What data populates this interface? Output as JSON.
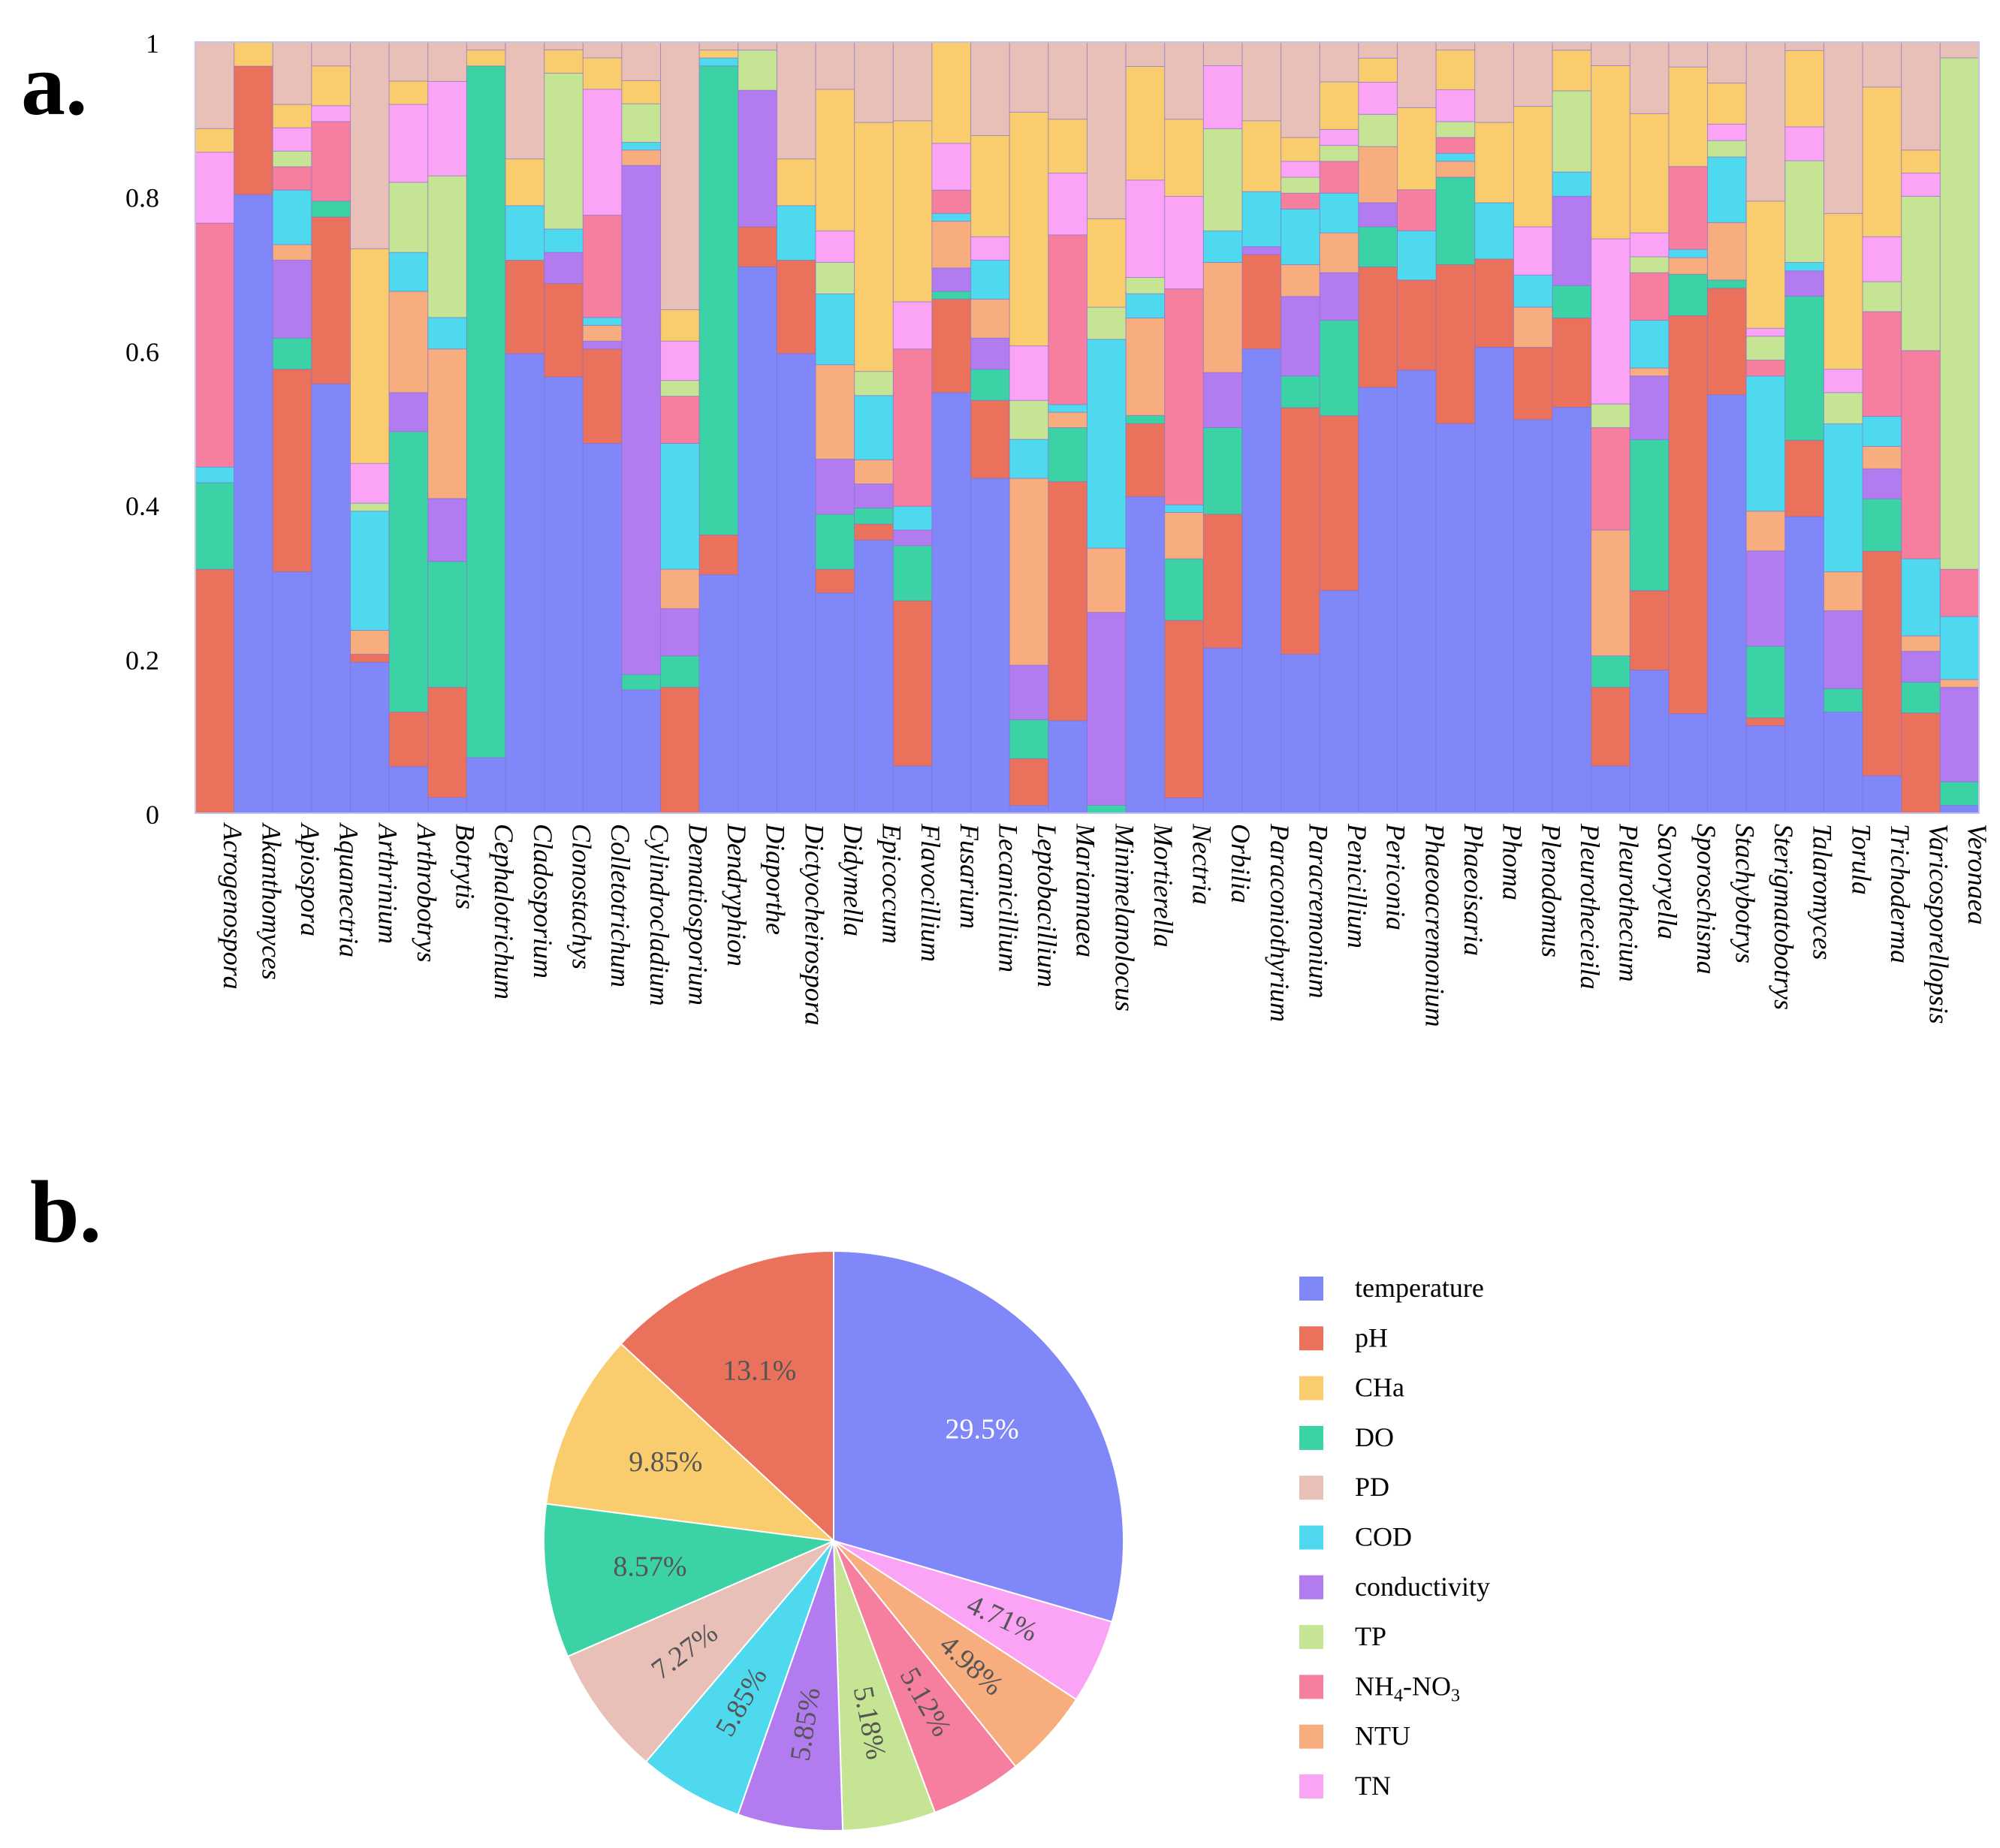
{
  "panel_labels": {
    "a": "a.",
    "b": "b."
  },
  "colors": {
    "temperature": "#8087f8",
    "pH": "#ea715c",
    "CHa": "#f9cc6e",
    "DO": "#3bd3a6",
    "PD": "#e8c0b8",
    "COD": "#4fd9ee",
    "conductivity": "#b27cf0",
    "TP": "#c6e594",
    "NH4-NO3": "#f67f9f",
    "NTU": "#f7ad7d",
    "TN": "#fba4f5",
    "axis": "#c8c3e8"
  },
  "chart_data": [
    {
      "type": "bar",
      "stacked": true,
      "panel": "a",
      "title": "",
      "xlabel": "",
      "ylabel": "",
      "ylim": [
        0,
        1
      ],
      "yticks": [
        "0",
        "0.2",
        "0.4",
        "0.6",
        "0.8",
        "1"
      ],
      "stack_order": [
        "temperature",
        "pH",
        "DO",
        "conductivity",
        "NTU",
        "COD",
        "NH4-NO3",
        "TP",
        "TN",
        "CHa",
        "PD"
      ],
      "categories": [
        "Acrogenospora",
        "Akanthomyces",
        "Apiospora",
        "Aquanectria",
        "Arthrinium",
        "Arthrobotrys",
        "Botrytis",
        "Cephalotrichum",
        "Cladosporium",
        "Clonostachys",
        "Colletotrichum",
        "Cylindrocladium",
        "Dematiosporium",
        "Dendryphion",
        "Diaporthe",
        "Dictyocheirospora",
        "Didymella",
        "Epicoccum",
        "Flavocillium",
        "Fusarium",
        "Lecanicillium",
        "Leptobacillium",
        "Mariannaea",
        "Minimelanolocus",
        "Mortierella",
        "Nectria",
        "Orbilia",
        "Paraconiothyrium",
        "Paracremonium",
        "Penicillium",
        "Periconia",
        "Phaeoacremonium",
        "Phaeoisaria",
        "Phoma",
        "Plenodomus",
        "Pleurothecieila",
        "Pleurothecium",
        "Savoryella",
        "Sporoschisma",
        "Stachybotrys",
        "Sterigmatobotrys",
        "Talaromyces",
        "Torula",
        "Trichoderma",
        "Varicosporellopsis",
        "Veronaea"
      ],
      "series": [
        {
          "name": "temperature",
          "values": [
            0.0,
            0.77,
            0.31,
            0.54,
            0.19,
            0.06,
            0.02,
            0.07,
            0.59,
            0.56,
            0.47,
            0.16,
            0.0,
            0.3,
            0.68,
            0.59,
            0.28,
            0.34,
            0.06,
            0.54,
            0.43,
            0.01,
            0.12,
            0.0,
            0.39,
            0.02,
            0.21,
            0.59,
            0.2,
            0.28,
            0.53,
            0.54,
            0.49,
            0.58,
            0.49,
            0.5,
            0.06,
            0.18,
            0.12,
            0.51,
            0.11,
            0.35,
            0.13,
            0.05,
            0.0,
            0.01
          ]
        },
        {
          "name": "pH",
          "values": [
            0.31,
            0.16,
            0.26,
            0.21,
            0.01,
            0.07,
            0.14,
            0.0,
            0.12,
            0.12,
            0.12,
            0.0,
            0.16,
            0.05,
            0.05,
            0.12,
            0.03,
            0.02,
            0.21,
            0.12,
            0.1,
            0.06,
            0.31,
            0.0,
            0.09,
            0.23,
            0.17,
            0.12,
            0.31,
            0.22,
            0.15,
            0.11,
            0.2,
            0.11,
            0.09,
            0.11,
            0.1,
            0.1,
            0.48,
            0.13,
            0.01,
            0.09,
            0.0,
            0.3,
            0.13,
            0.0
          ]
        },
        {
          "name": "DO",
          "values": [
            0.11,
            0.0,
            0.04,
            0.02,
            0.0,
            0.36,
            0.16,
            0.87,
            0.0,
            0.0,
            0.0,
            0.02,
            0.04,
            0.59,
            0.0,
            0.0,
            0.07,
            0.02,
            0.07,
            0.01,
            0.04,
            0.05,
            0.07,
            0.01,
            0.01,
            0.08,
            0.11,
            0.0,
            0.04,
            0.12,
            0.05,
            0.0,
            0.11,
            0.0,
            0.0,
            0.04,
            0.04,
            0.19,
            0.05,
            0.01,
            0.09,
            0.17,
            0.03,
            0.07,
            0.04,
            0.03
          ]
        },
        {
          "name": "conductivity",
          "values": [
            0.0,
            0.0,
            0.1,
            0.0,
            0.0,
            0.05,
            0.08,
            0.0,
            0.0,
            0.04,
            0.01,
            0.66,
            0.06,
            0.0,
            0.17,
            0.0,
            0.07,
            0.03,
            0.02,
            0.03,
            0.04,
            0.07,
            0.0,
            0.24,
            0.0,
            0.0,
            0.07,
            0.01,
            0.1,
            0.06,
            0.03,
            0.0,
            0.0,
            0.0,
            0.0,
            0.11,
            0.0,
            0.08,
            0.0,
            0.0,
            0.12,
            0.03,
            0.1,
            0.04,
            0.04,
            0.12
          ]
        },
        {
          "name": "NTU",
          "values": [
            0.0,
            0.0,
            0.02,
            0.0,
            0.03,
            0.13,
            0.19,
            0.0,
            0.0,
            0.0,
            0.02,
            0.02,
            0.05,
            0.0,
            0.0,
            0.0,
            0.12,
            0.03,
            0.0,
            0.06,
            0.05,
            0.24,
            0.02,
            0.08,
            0.12,
            0.06,
            0.14,
            0.0,
            0.04,
            0.05,
            0.07,
            0.0,
            0.02,
            0.0,
            0.05,
            0.0,
            0.16,
            0.01,
            0.02,
            0.07,
            0.05,
            0.0,
            0.05,
            0.03,
            0.02,
            0.01
          ]
        },
        {
          "name": "COD",
          "values": [
            0.02,
            0.0,
            0.07,
            0.0,
            0.15,
            0.05,
            0.04,
            0.0,
            0.07,
            0.03,
            0.01,
            0.01,
            0.16,
            0.01,
            0.0,
            0.07,
            0.09,
            0.08,
            0.03,
            0.01,
            0.05,
            0.05,
            0.01,
            0.26,
            0.03,
            0.01,
            0.04,
            0.07,
            0.07,
            0.05,
            0.0,
            0.06,
            0.01,
            0.07,
            0.04,
            0.03,
            0.0,
            0.06,
            0.01,
            0.08,
            0.17,
            0.01,
            0.19,
            0.04,
            0.1,
            0.08
          ]
        },
        {
          "name": "NH4-NO3",
          "values": [
            0.31,
            0.0,
            0.03,
            0.1,
            0.0,
            0.0,
            0.0,
            0.0,
            0.0,
            0.0,
            0.13,
            0.0,
            0.06,
            0.0,
            0.0,
            0.0,
            0.0,
            0.0,
            0.2,
            0.03,
            0.0,
            0.0,
            0.22,
            0.0,
            0.0,
            0.28,
            0.0,
            0.0,
            0.02,
            0.04,
            0.0,
            0.05,
            0.02,
            0.0,
            0.0,
            0.0,
            0.13,
            0.06,
            0.1,
            0.0,
            0.02,
            0.0,
            0.0,
            0.14,
            0.27,
            0.06
          ]
        },
        {
          "name": "TP",
          "values": [
            0.0,
            0.0,
            0.02,
            0.0,
            0.01,
            0.09,
            0.18,
            0.0,
            0.0,
            0.2,
            0.0,
            0.05,
            0.02,
            0.0,
            0.05,
            0.0,
            0.04,
            0.03,
            0.0,
            0.0,
            0.0,
            0.05,
            0.0,
            0.04,
            0.02,
            0.0,
            0.13,
            0.0,
            0.02,
            0.02,
            0.04,
            0.0,
            0.02,
            0.0,
            0.0,
            0.1,
            0.03,
            0.02,
            0.0,
            0.02,
            0.03,
            0.12,
            0.04,
            0.04,
            0.2,
            0.65
          ]
        },
        {
          "name": "TN",
          "values": [
            0.09,
            0.0,
            0.03,
            0.02,
            0.05,
            0.1,
            0.12,
            0.0,
            0.0,
            0.0,
            0.16,
            0.0,
            0.05,
            0.0,
            0.0,
            0.0,
            0.04,
            0.0,
            0.06,
            0.06,
            0.03,
            0.07,
            0.08,
            0.0,
            0.12,
            0.12,
            0.08,
            0.0,
            0.02,
            0.02,
            0.04,
            0.0,
            0.04,
            0.0,
            0.06,
            0.0,
            0.21,
            0.03,
            0.0,
            0.02,
            0.01,
            0.04,
            0.03,
            0.06,
            0.03,
            0.0
          ]
        },
        {
          "name": "CHa",
          "values": [
            0.03,
            0.03,
            0.03,
            0.05,
            0.27,
            0.03,
            0.0,
            0.02,
            0.06,
            0.03,
            0.04,
            0.03,
            0.04,
            0.01,
            0.0,
            0.06,
            0.18,
            0.31,
            0.23,
            0.13,
            0.13,
            0.3,
            0.07,
            0.11,
            0.14,
            0.1,
            0.0,
            0.09,
            0.03,
            0.06,
            0.03,
            0.1,
            0.05,
            0.1,
            0.15,
            0.05,
            0.22,
            0.15,
            0.12,
            0.05,
            0.16,
            0.09,
            0.2,
            0.2,
            0.03,
            0.0
          ]
        },
        {
          "name": "PD",
          "values": [
            0.11,
            0.0,
            0.08,
            0.03,
            0.26,
            0.05,
            0.05,
            0.01,
            0.15,
            0.01,
            0.02,
            0.05,
            0.34,
            0.01,
            0.01,
            0.15,
            0.06,
            0.1,
            0.1,
            0.0,
            0.12,
            0.09,
            0.1,
            0.22,
            0.03,
            0.1,
            0.03,
            0.1,
            0.12,
            0.05,
            0.02,
            0.08,
            0.01,
            0.1,
            0.08,
            0.01,
            0.03,
            0.09,
            0.03,
            0.05,
            0.2,
            0.01,
            0.22,
            0.06,
            0.14,
            0.02
          ]
        }
      ]
    },
    {
      "type": "pie",
      "panel": "b",
      "title": "",
      "start_angle_deg": 0,
      "direction": "clockwise",
      "slices": [
        {
          "name": "temperature",
          "label": "29.5%",
          "value": 29.5
        },
        {
          "name": "TN",
          "label": "4.71%",
          "value": 4.71
        },
        {
          "name": "NTU",
          "label": "4.98%",
          "value": 4.98
        },
        {
          "name": "NH4-NO3",
          "label": "5.12%",
          "value": 5.12
        },
        {
          "name": "TP",
          "label": "5.18%",
          "value": 5.18
        },
        {
          "name": "conductivity",
          "label": "5.85%",
          "value": 5.85
        },
        {
          "name": "COD",
          "label": "5.85%",
          "value": 5.85
        },
        {
          "name": "PD",
          "label": "7.27%",
          "value": 7.27
        },
        {
          "name": "DO",
          "label": "8.57%",
          "value": 8.57
        },
        {
          "name": "CHa",
          "label": "9.85%",
          "value": 9.85
        },
        {
          "name": "pH",
          "label": "13.1%",
          "value": 13.1
        }
      ],
      "legend": {
        "position": "right",
        "entries": [
          {
            "key": "temperature",
            "label": "temperature"
          },
          {
            "key": "pH",
            "label": "pH"
          },
          {
            "key": "CHa",
            "label": "CHa"
          },
          {
            "key": "DO",
            "label": "DO"
          },
          {
            "key": "PD",
            "label": "PD"
          },
          {
            "key": "COD",
            "label": "COD"
          },
          {
            "key": "conductivity",
            "label": "conductivity"
          },
          {
            "key": "TP",
            "label": "TP"
          },
          {
            "key": "NH4-NO3",
            "label": "NH4-NO3",
            "rich": [
              "NH",
              "4",
              "-NO",
              "3"
            ]
          },
          {
            "key": "NTU",
            "label": "NTU"
          },
          {
            "key": "TN",
            "label": "TN"
          }
        ]
      }
    }
  ]
}
